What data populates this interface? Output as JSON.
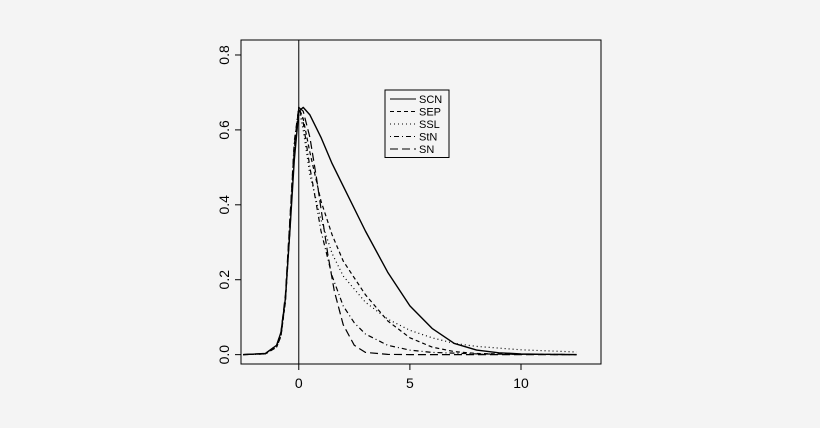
{
  "chart_data": {
    "type": "line",
    "title": "",
    "xlabel": "",
    "ylabel": "",
    "xlim": [
      -2.6,
      13.6
    ],
    "ylim": [
      -0.025,
      0.84
    ],
    "x_ticks": [
      0,
      5,
      10
    ],
    "y_ticks": [
      0.0,
      0.2,
      0.4,
      0.6,
      0.8
    ],
    "x_tick_labels": [
      "0",
      "5",
      "10"
    ],
    "y_tick_labels": [
      "0.0",
      "0.2",
      "0.4",
      "0.6",
      "0.8"
    ],
    "grid": false,
    "vertical_reference_line_x": 0,
    "legend_position": "top-center",
    "series": [
      {
        "name": "SCN",
        "style": "solid",
        "x": [
          -2.5,
          -1.5,
          -1.0,
          -0.8,
          -0.6,
          -0.4,
          -0.2,
          0.0,
          0.2,
          0.5,
          1.0,
          1.5,
          2.0,
          3.0,
          4.0,
          5.0,
          6.0,
          7.0,
          8.0,
          9.0,
          10.0,
          11.0,
          12.5
        ],
        "y": [
          0.0,
          0.003,
          0.025,
          0.06,
          0.15,
          0.33,
          0.52,
          0.65,
          0.66,
          0.64,
          0.58,
          0.51,
          0.45,
          0.33,
          0.22,
          0.13,
          0.07,
          0.03,
          0.012,
          0.005,
          0.002,
          0.001,
          0.0
        ]
      },
      {
        "name": "SEP",
        "style": "dashed",
        "x": [
          -2.5,
          -1.5,
          -1.0,
          -0.8,
          -0.6,
          -0.4,
          -0.2,
          0.0,
          0.2,
          0.5,
          1.0,
          1.5,
          2.0,
          3.0,
          4.0,
          5.0,
          6.0,
          7.0,
          8.0,
          10.0,
          12.5
        ],
        "y": [
          0.0,
          0.002,
          0.02,
          0.05,
          0.14,
          0.33,
          0.55,
          0.66,
          0.63,
          0.54,
          0.41,
          0.32,
          0.25,
          0.16,
          0.09,
          0.045,
          0.02,
          0.008,
          0.003,
          0.001,
          0.0
        ]
      },
      {
        "name": "SSL",
        "style": "dotted",
        "x": [
          -2.5,
          -1.5,
          -1.0,
          -0.8,
          -0.6,
          -0.4,
          -0.2,
          0.0,
          0.2,
          0.5,
          1.0,
          1.5,
          2.0,
          3.0,
          4.0,
          5.0,
          6.0,
          7.0,
          8.0,
          10.0,
          12.5
        ],
        "y": [
          0.0,
          0.002,
          0.02,
          0.05,
          0.14,
          0.34,
          0.56,
          0.66,
          0.6,
          0.48,
          0.36,
          0.27,
          0.21,
          0.14,
          0.095,
          0.065,
          0.045,
          0.03,
          0.022,
          0.013,
          0.007
        ]
      },
      {
        "name": "StN",
        "style": "dotdash",
        "x": [
          -2.5,
          -1.5,
          -1.0,
          -0.8,
          -0.6,
          -0.4,
          -0.2,
          0.0,
          0.2,
          0.5,
          1.0,
          1.5,
          2.0,
          2.5,
          3.0,
          4.0,
          5.0,
          6.0,
          8.0,
          10.0,
          12.5
        ],
        "y": [
          0.0,
          0.002,
          0.02,
          0.05,
          0.15,
          0.36,
          0.57,
          0.66,
          0.62,
          0.5,
          0.33,
          0.21,
          0.13,
          0.085,
          0.055,
          0.025,
          0.012,
          0.006,
          0.002,
          0.001,
          0.0
        ]
      },
      {
        "name": "SN",
        "style": "longdash",
        "x": [
          -2.5,
          -1.5,
          -1.0,
          -0.8,
          -0.6,
          -0.4,
          -0.2,
          0.0,
          0.2,
          0.5,
          0.8,
          1.0,
          1.3,
          1.6,
          2.0,
          2.5,
          3.0,
          4.0,
          5.0,
          12.5
        ],
        "y": [
          0.0,
          0.003,
          0.025,
          0.06,
          0.16,
          0.36,
          0.56,
          0.66,
          0.65,
          0.58,
          0.47,
          0.39,
          0.27,
          0.17,
          0.08,
          0.025,
          0.006,
          0.0005,
          0.0,
          0.0
        ]
      }
    ]
  }
}
